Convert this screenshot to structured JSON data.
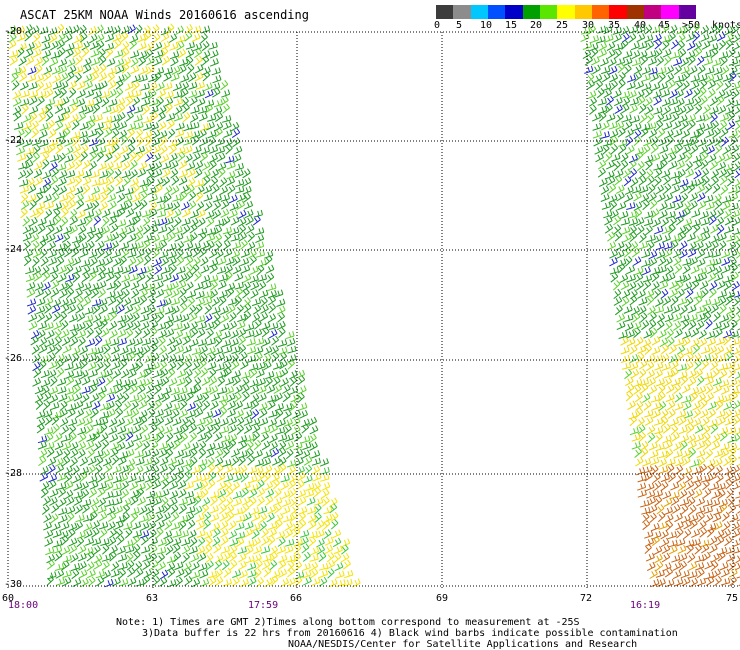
{
  "title": "ASCAT 25KM NOAA Winds 20160616 ascending",
  "legend": {
    "colors": [
      "#3c3c3c",
      "#8c8c8c",
      "#00c8ff",
      "#0050ff",
      "#0000c8",
      "#00a000",
      "#5ae600",
      "#ffff00",
      "#ffc800",
      "#ff6400",
      "#ff0000",
      "#a03200",
      "#c00080",
      "#ff00ff",
      "#6400a0"
    ],
    "labels": [
      "0",
      "5",
      "10",
      "15",
      "20",
      "25",
      "30",
      "35",
      "40",
      "45",
      ">50"
    ],
    "units": "knots"
  },
  "axes": {
    "lat_labels": [
      "-20",
      "-22",
      "-24",
      "-26",
      "-28",
      "-30"
    ],
    "lon_labels": [
      "60",
      "63",
      "66",
      "69",
      "72",
      "75"
    ]
  },
  "time_labels": [
    "18:00",
    "17:59",
    "16:19"
  ],
  "notes": [
    "Note: 1) Times are GMT 2)Times along bottom correspond to measurement at -25S",
    "3)Data buffer is 22 hrs from 20160616 4) Black wind barbs indicate possible contamination",
    "NOAA/NESDIS/Center for Satellite Applications and Research"
  ]
}
